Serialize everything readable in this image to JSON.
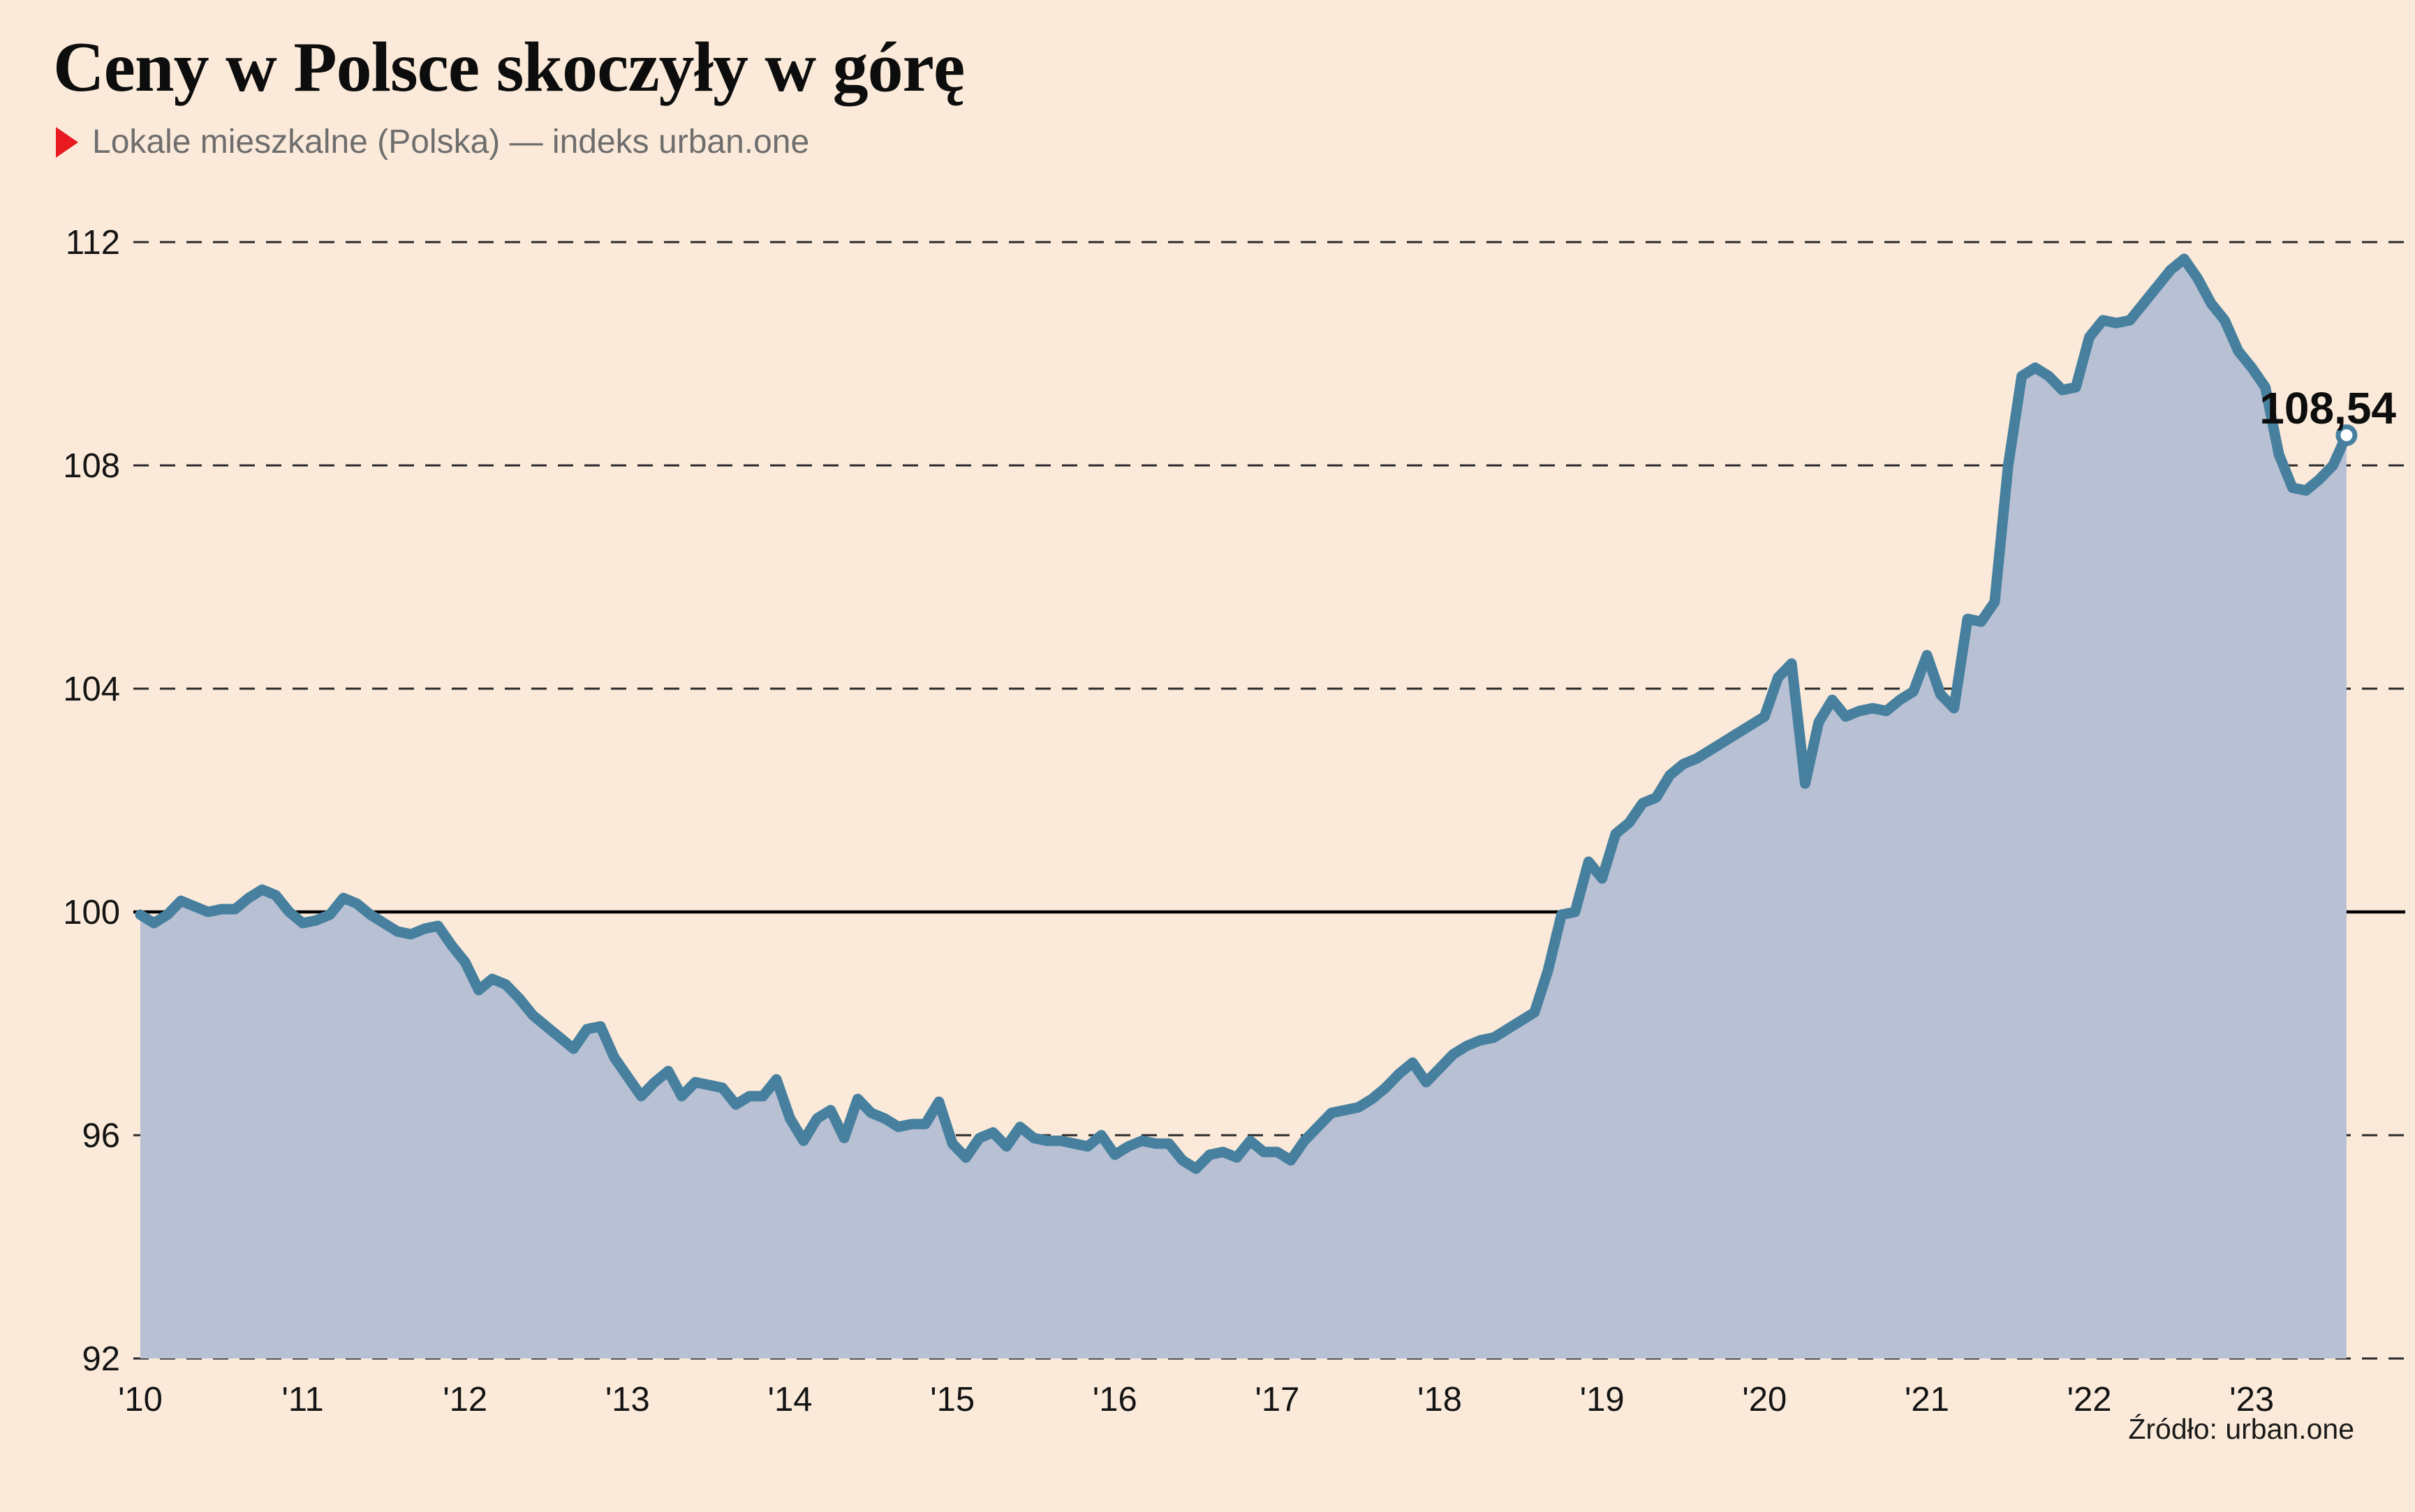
{
  "header": {
    "title": "Ceny w Polsce skoczyły w górę",
    "subtitle": "Lokale mieszkalne (Polska) — indeks urban.one",
    "marker_color": "#e8191f"
  },
  "source": {
    "label": "Źródło: urban.one"
  },
  "chart_data": {
    "type": "area",
    "title": "Ceny w Polsce skoczyły w górę",
    "subtitle": "Lokale mieszkalne (Polska) — indeks urban.one",
    "xlabel": "",
    "ylabel": "",
    "ylim": [
      92,
      112
    ],
    "grid": "horizontal-dashed",
    "baseline_value": 100,
    "y_ticks": [
      112,
      108,
      104,
      100,
      96,
      92
    ],
    "x_tick_labels": [
      "'10",
      "'11",
      "'12",
      "'13",
      "'14",
      "'15",
      "'16",
      "'17",
      "'18",
      "'19",
      "'20",
      "'21",
      "'22",
      "'23"
    ],
    "series_name": "indeks urban.one",
    "frequency": "monthly",
    "start": "2010-01",
    "end": "2023-08",
    "last_value": 108.54,
    "last_value_label": "108,54",
    "values": [
      99.95,
      99.8,
      99.95,
      100.2,
      100.1,
      100.0,
      100.05,
      100.05,
      100.25,
      100.4,
      100.3,
      100.0,
      99.8,
      99.85,
      99.95,
      100.25,
      100.15,
      99.95,
      99.8,
      99.65,
      99.6,
      99.7,
      99.75,
      99.4,
      99.1,
      98.6,
      98.8,
      98.7,
      98.45,
      98.15,
      97.95,
      97.75,
      97.55,
      97.9,
      97.95,
      97.4,
      97.05,
      96.7,
      96.95,
      97.15,
      96.7,
      96.95,
      96.9,
      96.85,
      96.55,
      96.7,
      96.7,
      97.0,
      96.3,
      95.9,
      96.3,
      96.45,
      95.95,
      96.65,
      96.4,
      96.3,
      96.15,
      96.2,
      96.2,
      96.6,
      95.85,
      95.6,
      95.95,
      96.05,
      95.8,
      96.15,
      95.95,
      95.9,
      95.9,
      95.85,
      95.8,
      96.0,
      95.65,
      95.8,
      95.9,
      95.85,
      95.85,
      95.55,
      95.4,
      95.65,
      95.7,
      95.6,
      95.9,
      95.7,
      95.7,
      95.55,
      95.9,
      96.15,
      96.4,
      96.45,
      96.5,
      96.65,
      96.85,
      97.1,
      97.3,
      96.95,
      97.2,
      97.45,
      97.6,
      97.7,
      97.75,
      97.9,
      98.05,
      98.2,
      98.95,
      99.95,
      100.0,
      100.9,
      100.6,
      101.4,
      101.6,
      101.95,
      102.05,
      102.45,
      102.65,
      102.75,
      102.9,
      103.05,
      103.2,
      103.35,
      103.5,
      104.2,
      104.45,
      102.3,
      103.4,
      103.8,
      103.5,
      103.6,
      103.65,
      103.6,
      103.8,
      103.95,
      104.6,
      103.9,
      103.65,
      105.25,
      105.2,
      105.55,
      108.0,
      109.6,
      109.75,
      109.6,
      109.35,
      109.4,
      110.3,
      110.6,
      110.55,
      110.6,
      110.9,
      111.2,
      111.5,
      111.7,
      111.35,
      110.9,
      110.6,
      110.05,
      109.75,
      109.4,
      108.2,
      107.6,
      107.55,
      107.75,
      108.0,
      108.54
    ],
    "colors": {
      "line": "#47809f",
      "area_fill": "#b8c0d3",
      "background": "#fbead9",
      "grid": "#2a2a2a",
      "baseline": "#000000",
      "marker_fill": "#ffffff"
    }
  }
}
